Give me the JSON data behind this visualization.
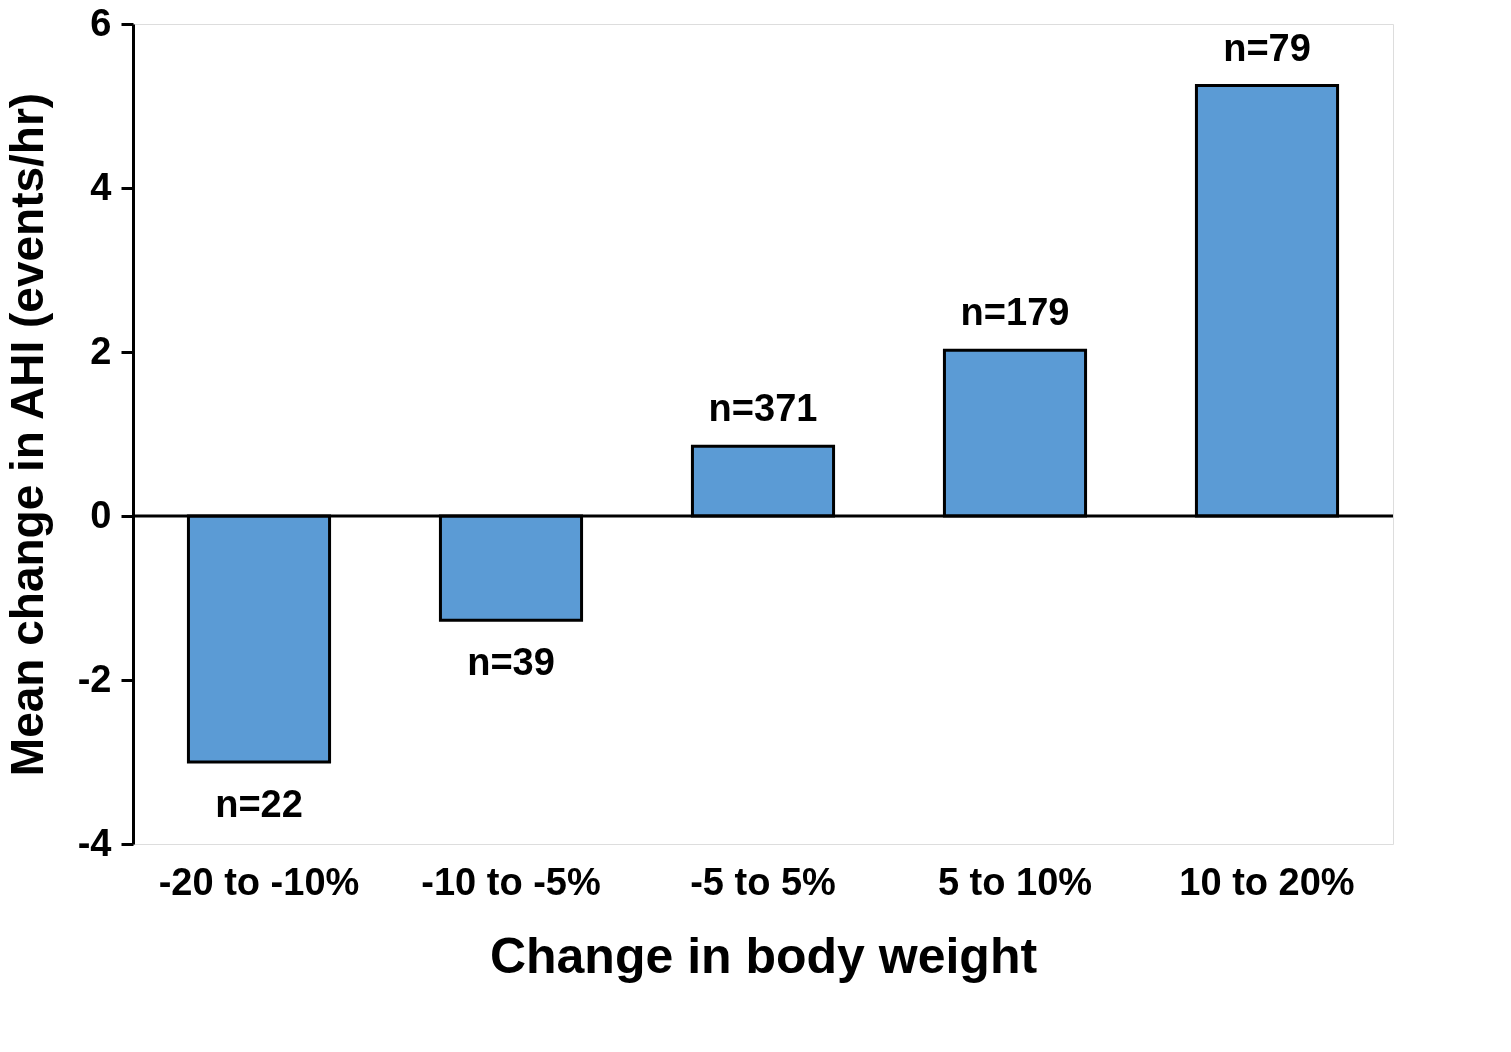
{
  "chart_data": {
    "type": "bar",
    "xlabel": "Change in body weight",
    "ylabel": "Mean change in AHI (events/hr)",
    "categories": [
      "-20 to -10%",
      "-10 to -5%",
      "-5 to 5%",
      "5 to 10%",
      "10 to 20%"
    ],
    "values": [
      -3.0,
      -1.27,
      0.85,
      2.02,
      5.25
    ],
    "color": "#5b9bd5",
    "ylim": [
      -4,
      6
    ],
    "yticks": [
      -4,
      -2,
      0,
      2,
      4,
      6
    ],
    "grid": false,
    "ref_lines": [
      {
        "axis": "y",
        "value": 0,
        "color": "#000000"
      }
    ],
    "annotations": [
      {
        "text": "n=22",
        "x": "-20 to -10%",
        "y": -3.0
      },
      {
        "text": "n=39",
        "x": "-10 to -5%",
        "y": -1.27
      },
      {
        "text": "n=371",
        "x": "-5 to 5%",
        "y": 0.85
      },
      {
        "text": "n=179",
        "x": "5 to 10%",
        "y": 2.02
      },
      {
        "text": "n=79",
        "x": "10 to 20%",
        "y": 5.25
      }
    ]
  }
}
